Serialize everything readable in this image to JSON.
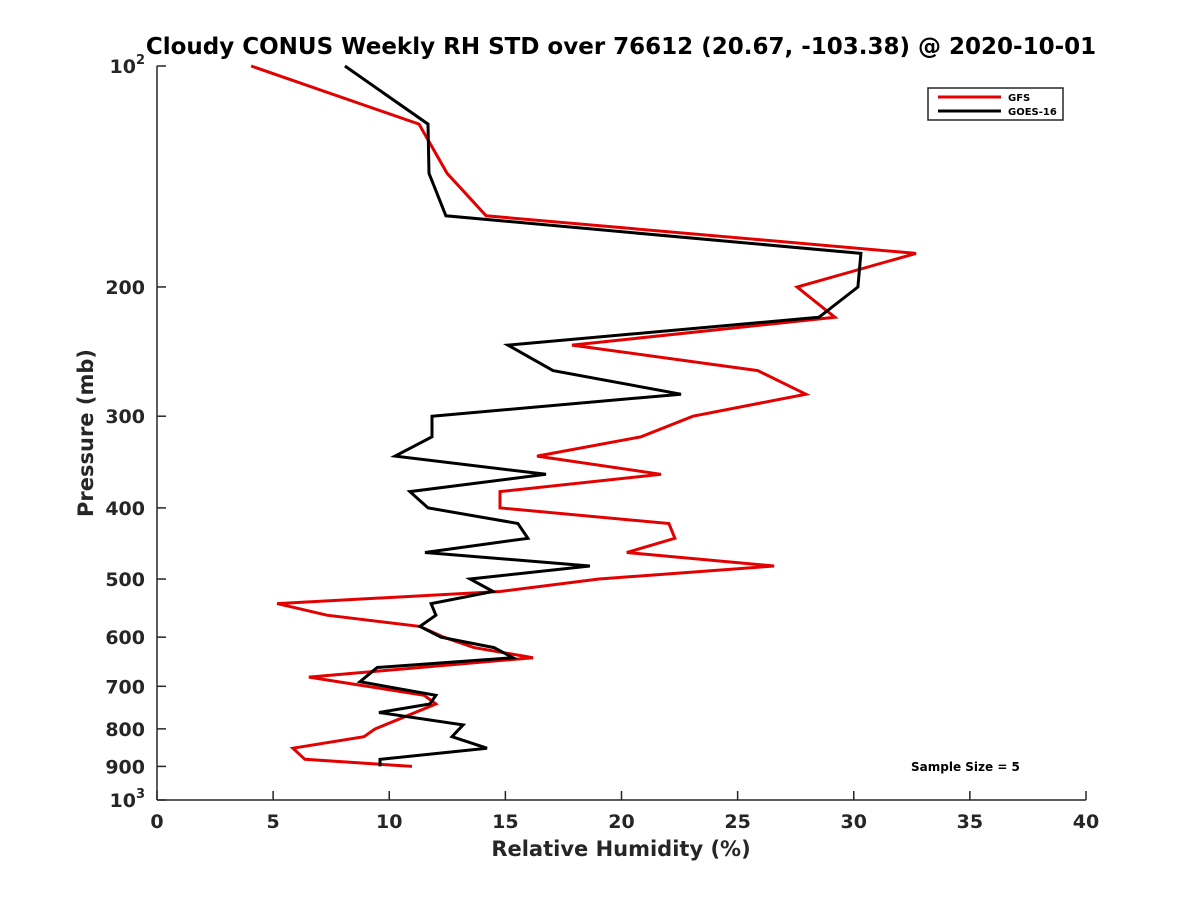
{
  "chart_data": {
    "type": "line",
    "title": "Cloudy CONUS Weekly RH STD over 76612 (20.67, -103.38) @ 2020-10-01",
    "xlabel": "Relative Humidity (%)",
    "ylabel": "Pressure (mb)",
    "xlim": [
      0,
      40
    ],
    "ylim": [
      100,
      1000
    ],
    "yscale": "log",
    "yaxis_inverted": true,
    "grid": false,
    "x_ticks": [
      0,
      5,
      10,
      15,
      20,
      25,
      30,
      35,
      40
    ],
    "x_tick_labels": [
      "0",
      "5",
      "10",
      "15",
      "20",
      "25",
      "30",
      "35",
      "40"
    ],
    "y_ticks": [
      100,
      200,
      300,
      400,
      500,
      600,
      700,
      800,
      900,
      1000
    ],
    "y_tick_labels": [
      {
        "base": "10",
        "exp": "2"
      },
      {
        "base": "200",
        "exp": ""
      },
      {
        "base": "300",
        "exp": ""
      },
      {
        "base": "400",
        "exp": ""
      },
      {
        "base": "500",
        "exp": ""
      },
      {
        "base": "600",
        "exp": ""
      },
      {
        "base": "700",
        "exp": ""
      },
      {
        "base": "800",
        "exp": ""
      },
      {
        "base": "900",
        "exp": ""
      },
      {
        "base": "10",
        "exp": "3"
      }
    ],
    "legend": {
      "placement": "top-right",
      "entries": [
        "GFS",
        "GOES-16"
      ]
    },
    "annotation": "Sample Size = 5",
    "series": [
      {
        "name": "GFS",
        "color": "#e30000",
        "pressure": [
          100,
          120,
          140,
          160,
          180,
          200,
          220,
          240,
          260,
          280,
          300,
          320,
          340,
          360,
          380,
          400,
          420,
          440,
          460,
          480,
          500,
          520,
          540,
          560,
          580,
          600,
          620,
          640,
          680,
          720,
          740,
          800,
          820,
          850,
          880,
          900
        ],
        "rh": [
          4.05,
          11.28,
          12.49,
          14.17,
          32.68,
          27.56,
          29.19,
          17.87,
          25.87,
          27.94,
          23.08,
          20.84,
          16.36,
          21.7,
          14.77,
          14.77,
          22.04,
          22.3,
          20.23,
          26.57,
          19.03,
          14.77,
          5.17,
          7.32,
          11.32,
          12.35,
          13.65,
          16.19,
          6.54,
          11.5,
          12.01,
          9.39,
          8.91,
          5.85,
          6.37,
          10.98
        ]
      },
      {
        "name": "GOES-16",
        "color": "#000000",
        "pressure": [
          100,
          120,
          140,
          160,
          180,
          200,
          220,
          240,
          260,
          280,
          300,
          320,
          340,
          360,
          380,
          400,
          420,
          440,
          460,
          480,
          500,
          520,
          540,
          560,
          580,
          600,
          620,
          640,
          660,
          690,
          720,
          740,
          760,
          790,
          820,
          850,
          880,
          900
        ],
        "rh": [
          8.09,
          11.67,
          11.71,
          12.44,
          30.31,
          30.18,
          28.5,
          15.11,
          17.05,
          22.56,
          11.84,
          11.84,
          10.25,
          16.75,
          10.89,
          11.67,
          15.54,
          15.97,
          11.54,
          18.64,
          13.48,
          14.47,
          11.8,
          12.01,
          11.32,
          12.23,
          14.51,
          15.33,
          9.48,
          8.74,
          12.01,
          11.75,
          9.56,
          13.18,
          12.7,
          14.21,
          9.6,
          9.6
        ]
      }
    ]
  }
}
